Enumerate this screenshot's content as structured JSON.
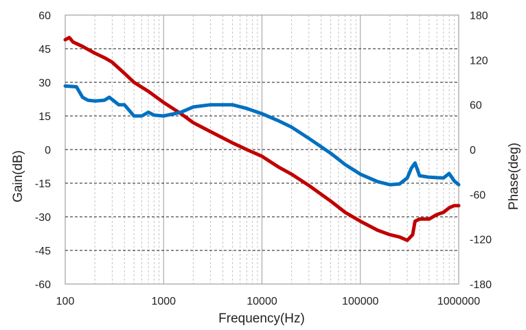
{
  "chart_data": {
    "type": "line",
    "title": "",
    "xlabel": "Frequency(Hz)",
    "ylabel": "Gain(dB)",
    "y2label": "Phase(deg)",
    "x_scale": "log",
    "xlim": [
      100,
      1000000
    ],
    "ylim": [
      -60,
      60
    ],
    "y2lim": [
      -180,
      180
    ],
    "x_ticks": [
      "100",
      "1000",
      "10000",
      "100000",
      "1000000"
    ],
    "y_ticks": [
      "-60",
      "-45",
      "-30",
      "-15",
      "0",
      "15",
      "30",
      "45",
      "60"
    ],
    "y2_ticks": [
      "-180",
      "-120",
      "-60",
      "0",
      "60",
      "120",
      "180"
    ],
    "grid": true,
    "legend": "none",
    "series": [
      {
        "axis": "left",
        "color": "#c00000",
        "x": [
          100,
          110,
          120,
          150,
          200,
          250,
          300,
          400,
          500,
          700,
          1000,
          1500,
          2000,
          3000,
          5000,
          7000,
          10000,
          15000,
          20000,
          30000,
          50000,
          70000,
          100000,
          150000,
          200000,
          250000,
          300000,
          340000,
          360000,
          400000,
          500000,
          600000,
          700000,
          800000,
          900000,
          1000000
        ],
        "values": [
          49,
          50,
          48,
          46,
          43,
          41,
          39,
          34,
          30,
          26,
          21,
          16,
          12,
          8,
          3,
          0,
          -3,
          -8,
          -11,
          -16,
          -23,
          -28,
          -32,
          -36,
          -38,
          -39,
          -40.5,
          -38,
          -32,
          -31,
          -31,
          -29,
          -28,
          -26,
          -25,
          -25
        ]
      },
      {
        "axis": "right",
        "color": "#0070c0",
        "x": [
          100,
          130,
          150,
          170,
          200,
          250,
          280,
          300,
          350,
          400,
          500,
          600,
          700,
          800,
          1000,
          1500,
          2000,
          3000,
          5000,
          7000,
          10000,
          15000,
          20000,
          30000,
          50000,
          70000,
          100000,
          150000,
          200000,
          250000,
          300000,
          330000,
          360000,
          400000,
          500000,
          700000,
          800000,
          900000,
          1000000
        ],
        "values": [
          85,
          84,
          70,
          66,
          65,
          66,
          70,
          67,
          60,
          60,
          45,
          45,
          50,
          46,
          45,
          50,
          57,
          60,
          60,
          55,
          48,
          38,
          30,
          15,
          -5,
          -20,
          -33,
          -43,
          -47,
          -46,
          -38,
          -25,
          -18,
          -35,
          -37,
          -38,
          -32,
          -42,
          -47
        ]
      }
    ]
  }
}
